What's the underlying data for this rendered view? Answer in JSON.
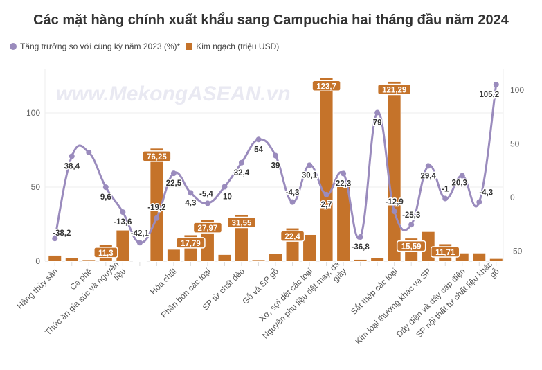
{
  "chart_data": {
    "type": "bar+line",
    "title": "Các mặt hàng chính xuất khẩu sang Campuchia hai tháng đầu năm 2024",
    "watermark": "www.MekongASEAN.vn",
    "legend": [
      {
        "name": "Tăng trưởng so với cùng kỳ năm 2023 (%)*",
        "color": "#9a8bbd",
        "type": "line"
      },
      {
        "name": "Kim ngạch (triệu USD)",
        "color": "#c5732a",
        "type": "bar"
      }
    ],
    "legend_placement": "top-left",
    "categories": [
      "Hàng thủy sản",
      "",
      "Cà phê",
      "",
      "Thức ăn gia súc và nguyên|liệu",
      "",
      "",
      "Hóa chất",
      "",
      "Phân bón các loại",
      "",
      "SP từ chất dẻo",
      "",
      "Gỗ và SP gỗ",
      "",
      "Xơ, sợi dệt các loại",
      "",
      "Nguyên phụ liệu dệt may, da|giày",
      "",
      "",
      "Sắt thép các loại",
      "",
      "Kim loại thường khác và SP",
      "",
      "Dây điện và dây cáp điện",
      "",
      "SP nội thất từ chất liệu khác|gỗ"
    ],
    "series": [
      {
        "name": "Kim ngạch (triệu USD)",
        "axis": "left",
        "type": "bar",
        "values": [
          4,
          2.5,
          1,
          11.3,
          21,
          0.5,
          76.25,
          8,
          17.79,
          27.97,
          4.5,
          31.55,
          1,
          5,
          22.4,
          18,
          123.7,
          51,
          1.2,
          2.5,
          121.29,
          15.59,
          20,
          11.71,
          5.5,
          5.5,
          1.8
        ],
        "labeled": [
          false,
          false,
          false,
          true,
          false,
          false,
          true,
          false,
          true,
          true,
          false,
          true,
          false,
          false,
          true,
          false,
          true,
          false,
          false,
          false,
          true,
          true,
          false,
          true,
          false,
          false,
          false
        ]
      },
      {
        "name": "Tăng trưởng so với cùng kỳ năm 2023 (%)*",
        "axis": "right",
        "type": "line",
        "values": [
          -38.2,
          38.4,
          42,
          9.6,
          -13.6,
          -42.1,
          -19.2,
          22.5,
          4.3,
          -5.4,
          10,
          32.4,
          54,
          39,
          -4.3,
          30.1,
          2.7,
          22.3,
          -36.8,
          79,
          -12.9,
          -25.3,
          29.4,
          -1,
          20.3,
          -4.3,
          105.2
        ],
        "labeled": [
          true,
          true,
          false,
          true,
          true,
          true,
          true,
          true,
          true,
          true,
          true,
          true,
          true,
          true,
          true,
          true,
          true,
          true,
          true,
          true,
          true,
          true,
          true,
          true,
          true,
          true,
          true
        ]
      }
    ],
    "left_axis": {
      "ylim": [
        0,
        125
      ],
      "ticks": [
        0,
        50,
        100
      ]
    },
    "right_axis": {
      "ylim": [
        -60,
        110
      ],
      "ticks": [
        -50,
        0,
        50,
        100
      ]
    },
    "grid": true
  }
}
